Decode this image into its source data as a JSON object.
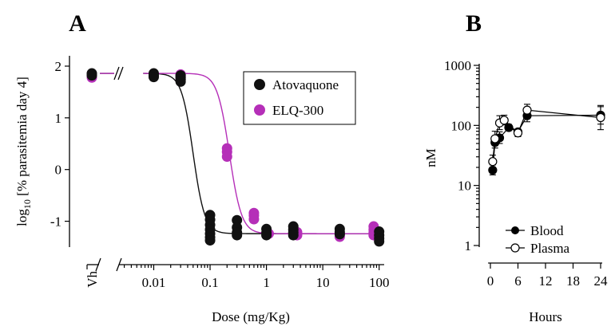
{
  "colors": {
    "atovaquone": "#111111",
    "elq300": "#b52fb8",
    "axis": "#000000"
  },
  "panel_a": {
    "letter": "A"
  },
  "panel_b": {
    "letter": "B"
  },
  "chart_data": [
    {
      "id": "A",
      "type": "scatter",
      "xlabel": "Dose (mg/Kg)",
      "ylabel_prefix": "log",
      "ylabel_sub": "10",
      "ylabel_rest": " [% parasitemia day 4]",
      "x_scale": "log",
      "xlim": [
        0.0025,
        140
      ],
      "ylim": [
        -1.5,
        2.2
      ],
      "x_ticks": [
        {
          "value": 0.01,
          "label": "0.01"
        },
        {
          "value": 0.1,
          "label": "0.1"
        },
        {
          "value": 1,
          "label": "1"
        },
        {
          "value": 10,
          "label": "10"
        },
        {
          "value": 100,
          "label": "100"
        }
      ],
      "vehicle_label": "Vh",
      "y_ticks": [
        {
          "value": 2,
          "label": "2"
        },
        {
          "value": 1,
          "label": "1"
        },
        {
          "value": 0,
          "label": "0"
        },
        {
          "value": -1,
          "label": "-1"
        }
      ],
      "legend_position": "top-right",
      "series": [
        {
          "name": "Atovaquone",
          "color_key": "atovaquone",
          "vehicle_points": [
            1.86,
            1.82
          ],
          "points": [
            [
              0.01,
              1.86
            ],
            [
              0.01,
              1.82
            ],
            [
              0.01,
              1.79
            ],
            [
              0.03,
              1.82
            ],
            [
              0.03,
              1.78
            ],
            [
              0.03,
              1.74
            ],
            [
              0.03,
              1.7
            ],
            [
              0.1,
              -0.88
            ],
            [
              0.1,
              -0.97
            ],
            [
              0.1,
              -1.07
            ],
            [
              0.1,
              -1.16
            ],
            [
              0.1,
              -1.24
            ],
            [
              0.1,
              -1.31
            ],
            [
              0.1,
              -1.37
            ],
            [
              0.3,
              -0.98
            ],
            [
              0.3,
              -1.12
            ],
            [
              0.3,
              -1.22
            ],
            [
              0.3,
              -1.27
            ],
            [
              1,
              -1.15
            ],
            [
              1,
              -1.22
            ],
            [
              1,
              -1.27
            ],
            [
              3,
              -1.1
            ],
            [
              3,
              -1.16
            ],
            [
              3,
              -1.22
            ],
            [
              3,
              -1.27
            ],
            [
              20,
              -1.15
            ],
            [
              20,
              -1.21
            ],
            [
              20,
              -1.25
            ],
            [
              100,
              -1.2
            ],
            [
              100,
              -1.27
            ],
            [
              100,
              -1.33
            ],
            [
              100,
              -1.39
            ]
          ],
          "fit": {
            "top": 1.86,
            "bottom": -1.24,
            "ec50": 0.05,
            "hill": 4.2
          }
        },
        {
          "name": "ELQ-300",
          "color_key": "elq300",
          "vehicle_points": [
            1.85,
            1.78
          ],
          "points": [
            [
              0.03,
              1.84
            ],
            [
              0.03,
              1.79
            ],
            [
              0.03,
              1.75
            ],
            [
              0.2,
              0.41
            ],
            [
              0.2,
              0.34
            ],
            [
              0.2,
              0.25
            ],
            [
              0.6,
              -0.84
            ],
            [
              0.6,
              -0.89
            ],
            [
              0.6,
              -0.96
            ],
            [
              1.1,
              -1.24
            ],
            [
              3.5,
              -1.21
            ],
            [
              3.5,
              -1.27
            ],
            [
              20,
              -1.25
            ],
            [
              20,
              -1.3
            ],
            [
              80,
              -1.1
            ],
            [
              80,
              -1.16
            ],
            [
              80,
              -1.22
            ],
            [
              80,
              -1.27
            ]
          ],
          "fit": {
            "top": 1.86,
            "bottom": -1.24,
            "ec50": 0.22,
            "hill": 4.0
          }
        }
      ]
    },
    {
      "id": "B",
      "type": "line",
      "xlabel": "Hours",
      "ylabel": "nM",
      "y_scale": "log",
      "xlim": [
        -1,
        25
      ],
      "ylim": [
        1,
        1000
      ],
      "x_ticks": [
        {
          "value": 0,
          "label": "0"
        },
        {
          "value": 6,
          "label": "6"
        },
        {
          "value": 12,
          "label": "12"
        },
        {
          "value": 18,
          "label": "18"
        },
        {
          "value": 24,
          "label": "24"
        }
      ],
      "y_ticks": [
        {
          "value": 1000,
          "label": "1000"
        },
        {
          "value": 100,
          "label": "100"
        },
        {
          "value": 10,
          "label": "10"
        },
        {
          "value": 1,
          "label": "1"
        }
      ],
      "legend_position": "bottom-right",
      "series": [
        {
          "name": "Blood",
          "marker": "filled",
          "points": [
            {
              "x": 0.5,
              "y": 18,
              "err": [
                15,
                22
              ]
            },
            {
              "x": 1,
              "y": 52,
              "err": [
                42,
                65
              ]
            },
            {
              "x": 2,
              "y": 62,
              "err": [
                50,
                78
              ]
            },
            {
              "x": 4,
              "y": 92,
              "err": [
                82,
                104
              ]
            },
            {
              "x": 6,
              "y": 78,
              "err": [
                70,
                87
              ]
            },
            {
              "x": 8,
              "y": 145,
              "err": [
                115,
                180
              ]
            },
            {
              "x": 24,
              "y": 148,
              "err": [
                105,
                205
              ]
            }
          ]
        },
        {
          "name": "Plasma",
          "marker": "open",
          "points": [
            {
              "x": 0.5,
              "y": 25,
              "err": [
                20,
                32
              ]
            },
            {
              "x": 1,
              "y": 60,
              "err": [
                46,
                80
              ]
            },
            {
              "x": 2,
              "y": 110,
              "err": [
                85,
                145
              ]
            },
            {
              "x": 3,
              "y": 122,
              "err": [
                102,
                148
              ]
            },
            {
              "x": 6,
              "y": 75,
              "err": [
                65,
                86
              ]
            },
            {
              "x": 8,
              "y": 180,
              "err": [
                145,
                225
              ]
            },
            {
              "x": 24,
              "y": 135,
              "err": [
                85,
                215
              ]
            }
          ]
        }
      ]
    }
  ]
}
